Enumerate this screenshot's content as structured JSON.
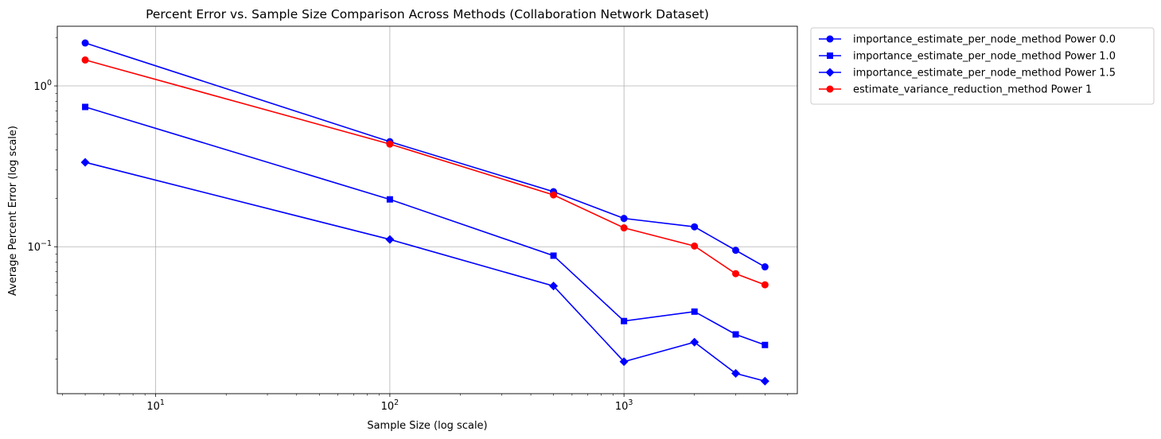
{
  "chart_data": {
    "type": "line",
    "title": "Percent Error vs. Sample Size Comparison Across Methods (Collaboration Network Dataset)",
    "xlabel": "Sample Size (log scale)",
    "ylabel": "Average Percent Error (log scale)",
    "xscale": "log",
    "yscale": "log",
    "xlim": [
      3.8,
      5500
    ],
    "ylim": [
      0.0122,
      2.35
    ],
    "grid": true,
    "legend_position": "outside-top-right",
    "x": [
      5,
      100,
      500,
      1000,
      2000,
      3000,
      4000
    ],
    "x_ticks": [
      {
        "value": 10,
        "label_base": "10",
        "label_exp": "1"
      },
      {
        "value": 100,
        "label_base": "10",
        "label_exp": "2"
      },
      {
        "value": 1000,
        "label_base": "10",
        "label_exp": "3"
      }
    ],
    "y_ticks": [
      {
        "value": 0.1,
        "label_base": "10",
        "label_exp": "−1"
      },
      {
        "value": 1,
        "label_base": "10",
        "label_exp": "0"
      }
    ],
    "series": [
      {
        "name": "importance_estimate_per_node_method Power 0.0",
        "color": "#0000ff",
        "marker": "circle",
        "values": [
          1.85,
          0.45,
          0.22,
          0.15,
          0.133,
          0.095,
          0.075
        ]
      },
      {
        "name": "importance_estimate_per_node_method Power 1.0",
        "color": "#0000ff",
        "marker": "square",
        "values": [
          0.74,
          0.197,
          0.088,
          0.0345,
          0.0395,
          0.0285,
          0.0245
        ]
      },
      {
        "name": "importance_estimate_per_node_method Power 1.5",
        "color": "#0000ff",
        "marker": "diamond",
        "values": [
          0.335,
          0.111,
          0.057,
          0.0193,
          0.0255,
          0.0163,
          0.0146
        ]
      },
      {
        "name": "estimate_variance_reduction_method Power 1",
        "color": "#ff0000",
        "marker": "circle",
        "values": [
          1.45,
          0.435,
          0.21,
          0.131,
          0.101,
          0.068,
          0.058
        ]
      }
    ]
  }
}
